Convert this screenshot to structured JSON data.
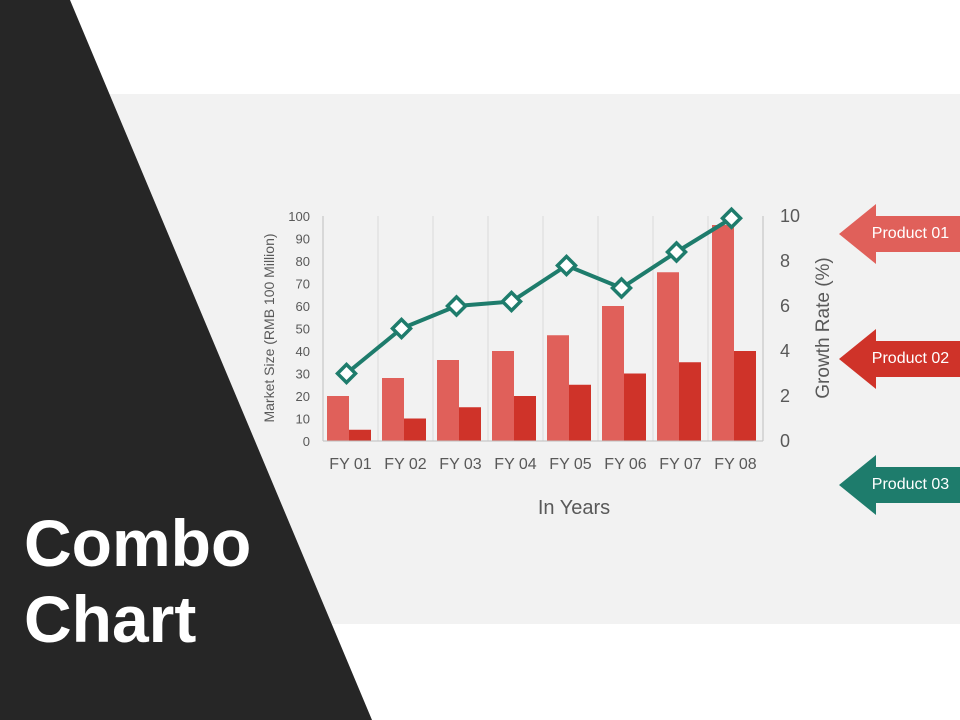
{
  "page": {
    "title_line1": "Combo",
    "title_line2": "Chart"
  },
  "colors": {
    "dark_panel": "#262626",
    "bg_panel": "#f2f2f2",
    "product01": "#e0605a",
    "product02": "#cf3329",
    "product03": "#1e7c6c"
  },
  "legend": {
    "items": [
      {
        "label": "Product 01",
        "color": "#e0605a",
        "icon": "arrow-left-tag-icon"
      },
      {
        "label": "Product 02",
        "color": "#cf3329",
        "icon": "arrow-left-tag-icon"
      },
      {
        "label": "Product 03",
        "color": "#1e7c6c",
        "icon": "arrow-left-tag-icon"
      }
    ]
  },
  "chart_data": {
    "type": "bar",
    "xlabel": "In Years",
    "ylabel": "Market Size (RMB 100 Million)",
    "y2label": "Growth Rate (%)",
    "categories": [
      "FY 01",
      "FY 02",
      "FY 03",
      "FY 04",
      "FY 05",
      "FY 06",
      "FY 07",
      "FY 08"
    ],
    "ylim": [
      0,
      100
    ],
    "yticks": [
      0,
      10,
      20,
      30,
      40,
      50,
      60,
      70,
      80,
      90,
      100
    ],
    "y2lim": [
      0,
      10
    ],
    "y2ticks": [
      0,
      2,
      4,
      6,
      8,
      10
    ],
    "grid": "vertical",
    "legend_position": "right",
    "series": [
      {
        "name": "Product 01",
        "kind": "bar",
        "axis": "left",
        "color": "#e0605a",
        "values": [
          20,
          28,
          36,
          40,
          47,
          60,
          75,
          96
        ]
      },
      {
        "name": "Product 02",
        "kind": "bar",
        "axis": "left",
        "color": "#cf3329",
        "values": [
          5,
          10,
          15,
          20,
          25,
          30,
          35,
          40
        ]
      },
      {
        "name": "Product 03",
        "kind": "line",
        "axis": "right",
        "marker": "diamond",
        "color": "#1e7c6c",
        "values": [
          3,
          5,
          6,
          6.2,
          7.8,
          6.8,
          8.4,
          9.9
        ]
      }
    ]
  }
}
